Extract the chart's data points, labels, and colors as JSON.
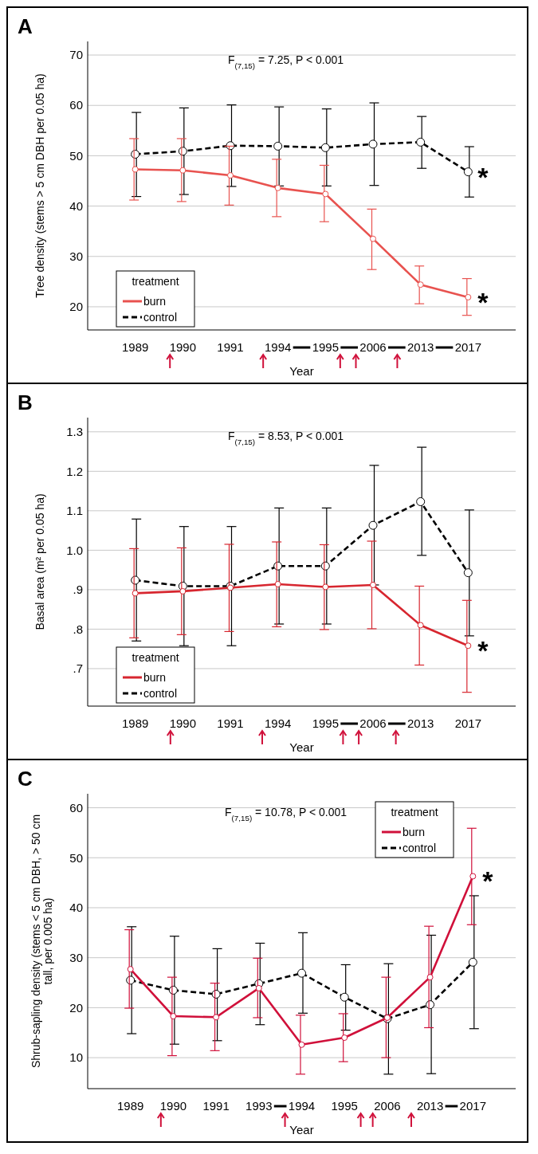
{
  "chart_data": [
    {
      "type": "line",
      "title": "A",
      "xlabel": "Year",
      "ylabel": "Tree density (stems > 5 cm DBH per 0.05 ha)",
      "legend_title": "treatment",
      "legend": "bottom left",
      "grid": "y",
      "marker": "circle",
      "categories": [
        "1989",
        "1990",
        "1991",
        "1994",
        "1995",
        "2006",
        "2013",
        "2017"
      ],
      "ylim": [
        15.4,
        72.7
      ],
      "yticks": [
        20,
        30,
        40,
        50,
        60,
        70
      ],
      "series": [
        {
          "name": "burn",
          "color": "#e8524f",
          "line_style": "solid",
          "values": [
            47.3,
            47.1,
            46.1,
            43.6,
            42.4,
            33.5,
            24.4,
            21.9
          ],
          "errors": [
            [
              41.2,
              53.4
            ],
            [
              40.9,
              53.4
            ],
            [
              40.2,
              51.9
            ],
            [
              37.9,
              49.3
            ],
            [
              36.9,
              48.1
            ],
            [
              27.4,
              39.4
            ],
            [
              20.6,
              28.1
            ],
            [
              18.3,
              25.6
            ]
          ]
        },
        {
          "name": "control",
          "color": "#000000",
          "line_style": "dashed",
          "values": [
            50.3,
            50.9,
            52.0,
            51.9,
            51.6,
            52.3,
            52.7,
            46.8
          ],
          "errors": [
            [
              41.9,
              58.6
            ],
            [
              42.3,
              59.5
            ],
            [
              43.9,
              60.1
            ],
            [
              44.0,
              59.7
            ],
            [
              44.0,
              59.3
            ],
            [
              44.1,
              60.5
            ],
            [
              47.5,
              57.8
            ],
            [
              41.8,
              51.8
            ]
          ]
        }
      ],
      "annotations": [
        "F$_{(7,15)}$ = 7.25, P < 0.001",
        {
          "text": "*",
          "x": "2017",
          "y": 46.8
        },
        {
          "text": "*",
          "x": "2017",
          "y": 21.9
        }
      ]
    },
    {
      "type": "line",
      "title": "B",
      "xlabel": "Year",
      "ylabel": "Basal area (m² per 0.05 ha)",
      "legend_title": "treatment",
      "legend": "bottom left",
      "grid": "y",
      "marker": "circle",
      "categories": [
        "1989",
        "1990",
        "1991",
        "1994",
        "1995",
        "2006",
        "2013",
        "2017"
      ],
      "ylim": [
        0.605,
        1.336
      ],
      "yticks": [
        {
          "value": 0.7,
          "label": ".7"
        },
        {
          "value": 0.8,
          "label": ".8"
        },
        {
          "value": 0.9,
          "label": ".9"
        },
        {
          "value": 1.0,
          "label": "1.0"
        },
        1.1,
        1.2,
        1.3
      ],
      "series": [
        {
          "name": "burn",
          "color": "#d7262f",
          "line_style": "solid",
          "values": [
            0.891,
            0.896,
            0.905,
            0.914,
            0.907,
            0.912,
            0.81,
            0.758
          ],
          "errors": [
            [
              0.778,
              1.004
            ],
            [
              0.786,
              1.006
            ],
            [
              0.794,
              1.015
            ],
            [
              0.806,
              1.021
            ],
            [
              0.799,
              1.014
            ],
            [
              0.801,
              1.023
            ],
            [
              0.709,
              0.909
            ],
            [
              0.64,
              0.873
            ]
          ]
        },
        {
          "name": "control",
          "color": "#000000",
          "line_style": "dashed",
          "values": [
            0.924,
            0.909,
            0.909,
            0.96,
            0.96,
            1.063,
            1.123,
            0.943
          ],
          "errors": [
            [
              0.77,
              1.079
            ],
            [
              0.758,
              1.06
            ],
            [
              0.758,
              1.06
            ],
            [
              0.813,
              1.107
            ],
            [
              0.813,
              1.107
            ],
            [
              0.912,
              1.215
            ],
            [
              0.987,
              1.261
            ],
            [
              0.783,
              1.102
            ]
          ]
        }
      ],
      "annotations": [
        "F$_{(7,15)}$ = 8.53, P < 0.001",
        {
          "text": "*",
          "x": "2017",
          "y": 0.758
        }
      ]
    },
    {
      "type": "line",
      "title": "C",
      "xlabel": "Year",
      "ylabel": "Shrub-sapling density (stems < 5 cm DBH, > 50 cm\ntall, per 0.005 ha)",
      "legend_title": "treatment",
      "legend": "top right",
      "grid": "y",
      "marker": "circle",
      "categories": [
        "1989",
        "1990",
        "1991",
        "1993",
        "1994",
        "1995",
        "2006",
        "2013",
        "2017"
      ],
      "ylim": [
        3.8,
        62.8
      ],
      "yticks": [
        10,
        20,
        30,
        40,
        50,
        60
      ],
      "series": [
        {
          "name": "burn",
          "color": "#d0103a",
          "line_style": "solid",
          "values": [
            27.7,
            18.3,
            18.1,
            23.9,
            12.6,
            14.0,
            18.0,
            26.1,
            46.3
          ],
          "errors": [
            [
              19.9,
              35.6
            ],
            [
              10.4,
              26.1
            ],
            [
              11.4,
              24.9
            ],
            [
              18.0,
              29.9
            ],
            [
              6.7,
              18.5
            ],
            [
              9.2,
              18.8
            ],
            [
              10.0,
              26.1
            ],
            [
              16.0,
              36.3
            ],
            [
              36.6,
              55.9
            ]
          ]
        },
        {
          "name": "control",
          "color": "#000000",
          "line_style": "dashed",
          "values": [
            25.5,
            23.5,
            22.7,
            24.8,
            26.9,
            22.1,
            17.8,
            20.6,
            29.1
          ],
          "errors": [
            [
              14.8,
              36.2
            ],
            [
              12.7,
              34.3
            ],
            [
              13.4,
              31.8
            ],
            [
              16.6,
              32.9
            ],
            [
              18.9,
              35.0
            ],
            [
              15.5,
              28.6
            ],
            [
              6.7,
              28.8
            ],
            [
              6.8,
              34.5
            ],
            [
              15.8,
              42.4
            ]
          ]
        }
      ],
      "annotations": [
        "F$_{(7,15)}$ = 10.78, P < 0.001",
        {
          "text": "*",
          "x": "2017",
          "y": 46.3
        }
      ]
    }
  ]
}
